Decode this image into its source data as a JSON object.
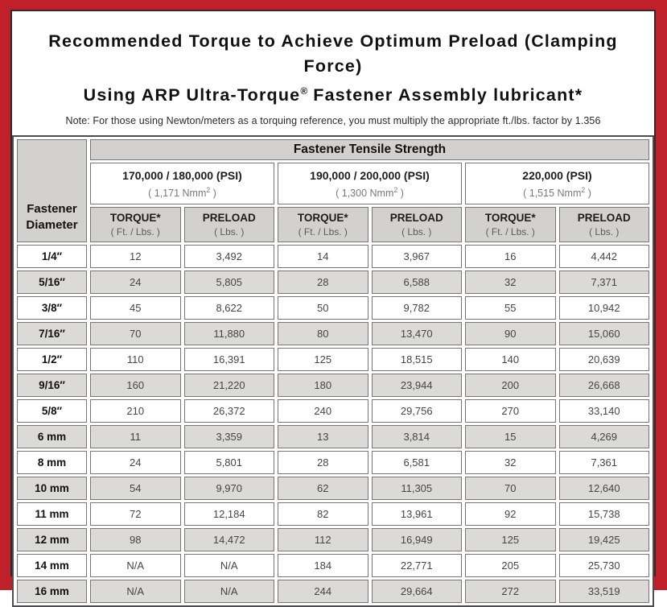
{
  "colors": {
    "frame_red": "#c0202a",
    "header_gray": "#d2d1ce",
    "stripe_gray": "#dbdad7"
  },
  "title": {
    "line1": "Recommended Torque to Achieve Optimum Preload (Clamping Force)",
    "line2_pre": "Using ARP Ultra-Torque",
    "line2_sup": "®",
    "line2_post": " Fastener Assembly lubricant*",
    "note": "Note: For those using Newton/meters as a torquing reference, you must multiply the appropriate ft./lbs. factor by 1.356"
  },
  "table": {
    "corner_header_line1": "Fastener",
    "corner_header_line2": "Diameter",
    "main_header": "Fastener Tensile Strength",
    "groups": [
      {
        "psi": "170,000 / 180,000 (PSI)",
        "nmm_pre": "( 1,171 Nmm",
        "nmm_sup": "2",
        "nmm_post": " )"
      },
      {
        "psi": "190,000 / 200,000 (PSI)",
        "nmm_pre": "( 1,300 Nmm",
        "nmm_sup": "2",
        "nmm_post": " )"
      },
      {
        "psi": "220,000 (PSI)",
        "nmm_pre": "( 1,515 Nmm",
        "nmm_sup": "2",
        "nmm_post": " )"
      }
    ],
    "col_headers": {
      "torque": "TORQUE*",
      "torque_sub": "( Ft. / Lbs. )",
      "preload": "PRELOAD",
      "preload_sub": "( Lbs. )"
    },
    "rows": [
      {
        "diameter": "1/4″",
        "values": [
          "12",
          "3,492",
          "14",
          "3,967",
          "16",
          "4,442"
        ]
      },
      {
        "diameter": "5/16″",
        "values": [
          "24",
          "5,805",
          "28",
          "6,588",
          "32",
          "7,371"
        ]
      },
      {
        "diameter": "3/8″",
        "values": [
          "45",
          "8,622",
          "50",
          "9,782",
          "55",
          "10,942"
        ]
      },
      {
        "diameter": "7/16″",
        "values": [
          "70",
          "11,880",
          "80",
          "13,470",
          "90",
          "15,060"
        ]
      },
      {
        "diameter": "1/2″",
        "values": [
          "110",
          "16,391",
          "125",
          "18,515",
          "140",
          "20,639"
        ]
      },
      {
        "diameter": "9/16″",
        "values": [
          "160",
          "21,220",
          "180",
          "23,944",
          "200",
          "26,668"
        ]
      },
      {
        "diameter": "5/8″",
        "values": [
          "210",
          "26,372",
          "240",
          "29,756",
          "270",
          "33,140"
        ]
      },
      {
        "diameter": "6 mm",
        "values": [
          "11",
          "3,359",
          "13",
          "3,814",
          "15",
          "4,269"
        ]
      },
      {
        "diameter": "8 mm",
        "values": [
          "24",
          "5,801",
          "28",
          "6,581",
          "32",
          "7,361"
        ]
      },
      {
        "diameter": "10 mm",
        "values": [
          "54",
          "9,970",
          "62",
          "11,305",
          "70",
          "12,640"
        ]
      },
      {
        "diameter": "11 mm",
        "values": [
          "72",
          "12,184",
          "82",
          "13,961",
          "92",
          "15,738"
        ]
      },
      {
        "diameter": "12 mm",
        "values": [
          "98",
          "14,472",
          "112",
          "16,949",
          "125",
          "19,425"
        ]
      },
      {
        "diameter": "14 mm",
        "values": [
          "N/A",
          "N/A",
          "184",
          "22,771",
          "205",
          "25,730"
        ]
      },
      {
        "diameter": "16 mm",
        "values": [
          "N/A",
          "N/A",
          "244",
          "29,664",
          "272",
          "33,519"
        ]
      }
    ]
  }
}
